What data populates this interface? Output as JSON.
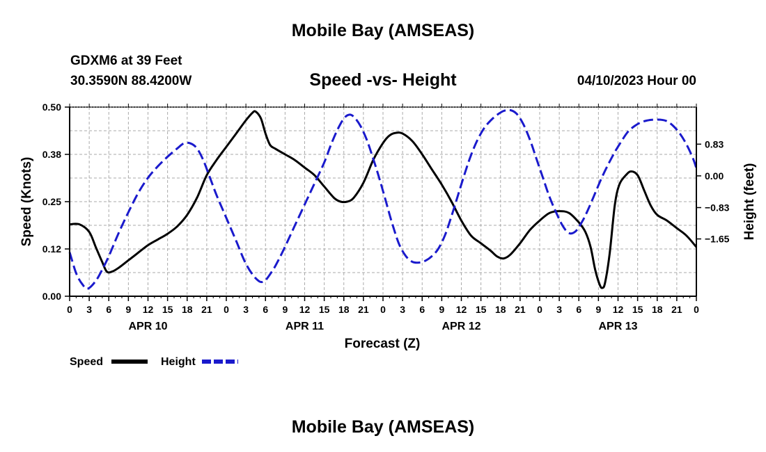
{
  "header": {
    "title": "Mobile Bay (AMSEAS)",
    "station": "GDXM6 at 39 Feet",
    "coords": "30.3590N  88.4200W",
    "subtitle": "Speed -vs- Height",
    "issued": "04/10/2023 Hour 00",
    "footer_title": "Mobile Bay (AMSEAS)"
  },
  "colors": {
    "speed": "#000000",
    "height": "#1a1acc",
    "grid": "#aaaaaa"
  },
  "chart_data": {
    "type": "line",
    "title": "Speed -vs- Height",
    "xlabel": "Forecast (Z)",
    "ylabel": "Speed (Knots)",
    "y2label": "Height (feet)",
    "xlim": [
      0,
      96
    ],
    "x_ticks": [
      0,
      3,
      6,
      9,
      12,
      15,
      18,
      21,
      24,
      27,
      30,
      33,
      36,
      39,
      42,
      45,
      48,
      51,
      54,
      57,
      60,
      63,
      66,
      69,
      72,
      75,
      78,
      81,
      84,
      87,
      90,
      93,
      96
    ],
    "x_tick_labels": [
      "0",
      "3",
      "6",
      "9",
      "12",
      "15",
      "18",
      "21",
      "0",
      "3",
      "6",
      "9",
      "12",
      "15",
      "18",
      "21",
      "0",
      "3",
      "6",
      "9",
      "12",
      "15",
      "18",
      "21",
      "0",
      "3",
      "6",
      "9",
      "12",
      "15",
      "18",
      "21",
      "0"
    ],
    "day_labels": [
      {
        "x": 12,
        "label": "APR 10"
      },
      {
        "x": 36,
        "label": "APR 11"
      },
      {
        "x": 60,
        "label": "APR 12"
      },
      {
        "x": 84,
        "label": "APR 13"
      }
    ],
    "ylim": [
      0,
      0.5
    ],
    "y_ticks": [
      0,
      0.125,
      0.25,
      0.375,
      0.5
    ],
    "y_tick_labels": [
      "0.00",
      "0.12",
      "0.25",
      "0.38",
      "0.50"
    ],
    "y2lim": [
      -3.15,
      1.8
    ],
    "y2_ticks": [
      -1.65,
      -0.83,
      0.0,
      0.83
    ],
    "y2_tick_labels": [
      "−1.65",
      "−0.83",
      "0.00",
      "0.83"
    ],
    "grid": true,
    "legend_position": "bottom-left",
    "series": [
      {
        "name": "Speed",
        "axis": "left",
        "style": "solid",
        "points": [
          [
            0,
            0.19
          ],
          [
            1.5,
            0.19
          ],
          [
            3,
            0.17
          ],
          [
            4,
            0.13
          ],
          [
            5,
            0.09
          ],
          [
            5.7,
            0.065
          ],
          [
            6.5,
            0.065
          ],
          [
            7.5,
            0.075
          ],
          [
            9,
            0.095
          ],
          [
            10.5,
            0.115
          ],
          [
            12,
            0.135
          ],
          [
            13.5,
            0.15
          ],
          [
            15,
            0.165
          ],
          [
            16.5,
            0.185
          ],
          [
            18,
            0.215
          ],
          [
            19.5,
            0.26
          ],
          [
            21,
            0.32
          ],
          [
            22.5,
            0.36
          ],
          [
            24,
            0.395
          ],
          [
            25.5,
            0.43
          ],
          [
            27,
            0.465
          ],
          [
            28,
            0.485
          ],
          [
            28.5,
            0.488
          ],
          [
            29.3,
            0.47
          ],
          [
            30,
            0.43
          ],
          [
            30.7,
            0.4
          ],
          [
            31.5,
            0.39
          ],
          [
            33,
            0.375
          ],
          [
            34.5,
            0.36
          ],
          [
            36,
            0.34
          ],
          [
            37.5,
            0.32
          ],
          [
            39,
            0.29
          ],
          [
            40.5,
            0.26
          ],
          [
            41.5,
            0.25
          ],
          [
            42.5,
            0.25
          ],
          [
            43.5,
            0.26
          ],
          [
            45,
            0.3
          ],
          [
            46.5,
            0.36
          ],
          [
            48,
            0.405
          ],
          [
            49,
            0.425
          ],
          [
            50,
            0.432
          ],
          [
            51,
            0.43
          ],
          [
            52.5,
            0.41
          ],
          [
            54,
            0.375
          ],
          [
            55.5,
            0.335
          ],
          [
            57,
            0.295
          ],
          [
            58.5,
            0.25
          ],
          [
            60,
            0.2
          ],
          [
            61.5,
            0.16
          ],
          [
            63,
            0.14
          ],
          [
            64.5,
            0.12
          ],
          [
            65.5,
            0.105
          ],
          [
            66.5,
            0.1
          ],
          [
            67.5,
            0.11
          ],
          [
            69,
            0.14
          ],
          [
            70.5,
            0.175
          ],
          [
            72,
            0.2
          ],
          [
            73.5,
            0.22
          ],
          [
            75,
            0.225
          ],
          [
            76.5,
            0.22
          ],
          [
            78,
            0.195
          ],
          [
            79,
            0.17
          ],
          [
            79.8,
            0.13
          ],
          [
            80.5,
            0.07
          ],
          [
            81.2,
            0.03
          ],
          [
            81.6,
            0.022
          ],
          [
            82,
            0.035
          ],
          [
            82.7,
            0.11
          ],
          [
            83.5,
            0.24
          ],
          [
            84.2,
            0.295
          ],
          [
            85.2,
            0.32
          ],
          [
            86,
            0.33
          ],
          [
            87,
            0.32
          ],
          [
            88,
            0.28
          ],
          [
            89,
            0.24
          ],
          [
            90,
            0.215
          ],
          [
            91.5,
            0.2
          ],
          [
            93,
            0.18
          ],
          [
            94.5,
            0.16
          ],
          [
            96,
            0.13
          ]
        ]
      },
      {
        "name": "Height",
        "axis": "right",
        "style": "dashed",
        "points": [
          [
            0,
            -2.0
          ],
          [
            1,
            -2.55
          ],
          [
            2,
            -2.85
          ],
          [
            2.8,
            -2.95
          ],
          [
            4,
            -2.75
          ],
          [
            5,
            -2.45
          ],
          [
            6,
            -2.1
          ],
          [
            7.5,
            -1.5
          ],
          [
            9,
            -0.95
          ],
          [
            10.5,
            -0.45
          ],
          [
            12,
            -0.05
          ],
          [
            13.5,
            0.25
          ],
          [
            15,
            0.5
          ],
          [
            16.5,
            0.72
          ],
          [
            17.5,
            0.85
          ],
          [
            18.5,
            0.85
          ],
          [
            19.5,
            0.72
          ],
          [
            20.5,
            0.4
          ],
          [
            21.5,
            -0.05
          ],
          [
            22.5,
            -0.5
          ],
          [
            24,
            -1.1
          ],
          [
            25.5,
            -1.7
          ],
          [
            27,
            -2.3
          ],
          [
            28.5,
            -2.68
          ],
          [
            29.7,
            -2.77
          ],
          [
            31,
            -2.5
          ],
          [
            32,
            -2.2
          ],
          [
            33,
            -1.85
          ],
          [
            34.5,
            -1.3
          ],
          [
            36,
            -0.75
          ],
          [
            37.5,
            -0.2
          ],
          [
            39,
            0.35
          ],
          [
            40,
            0.8
          ],
          [
            41,
            1.2
          ],
          [
            42,
            1.5
          ],
          [
            42.8,
            1.6
          ],
          [
            43.5,
            1.55
          ],
          [
            44.5,
            1.32
          ],
          [
            45.5,
            0.95
          ],
          [
            46.5,
            0.45
          ],
          [
            47.5,
            -0.1
          ],
          [
            48.5,
            -0.7
          ],
          [
            49.5,
            -1.3
          ],
          [
            50.5,
            -1.8
          ],
          [
            51.5,
            -2.1
          ],
          [
            52.5,
            -2.25
          ],
          [
            53.5,
            -2.27
          ],
          [
            54.5,
            -2.22
          ],
          [
            55.5,
            -2.1
          ],
          [
            56.5,
            -1.9
          ],
          [
            57.5,
            -1.55
          ],
          [
            58.5,
            -1.05
          ],
          [
            59.5,
            -0.5
          ],
          [
            60.5,
            0.05
          ],
          [
            61.5,
            0.55
          ],
          [
            62.5,
            0.95
          ],
          [
            63.5,
            1.25
          ],
          [
            64.5,
            1.45
          ],
          [
            65.5,
            1.6
          ],
          [
            66.5,
            1.7
          ],
          [
            67.5,
            1.72
          ],
          [
            68.5,
            1.62
          ],
          [
            69.5,
            1.35
          ],
          [
            70.5,
            0.95
          ],
          [
            71.5,
            0.45
          ],
          [
            72.5,
            -0.05
          ],
          [
            73.5,
            -0.55
          ],
          [
            74.5,
            -0.95
          ],
          [
            75.5,
            -1.3
          ],
          [
            76.5,
            -1.5
          ],
          [
            77.5,
            -1.45
          ],
          [
            78.5,
            -1.2
          ],
          [
            79.5,
            -0.85
          ],
          [
            80.5,
            -0.45
          ],
          [
            81.5,
            -0.05
          ],
          [
            82.5,
            0.3
          ],
          [
            83.5,
            0.62
          ],
          [
            84.5,
            0.9
          ],
          [
            85.5,
            1.15
          ],
          [
            86.5,
            1.3
          ],
          [
            87.5,
            1.4
          ],
          [
            88.5,
            1.45
          ],
          [
            89.5,
            1.47
          ],
          [
            90.5,
            1.47
          ],
          [
            91.5,
            1.43
          ],
          [
            92.5,
            1.3
          ],
          [
            93.5,
            1.1
          ],
          [
            94.5,
            0.82
          ],
          [
            95.5,
            0.45
          ],
          [
            96,
            0.2
          ]
        ]
      }
    ]
  }
}
